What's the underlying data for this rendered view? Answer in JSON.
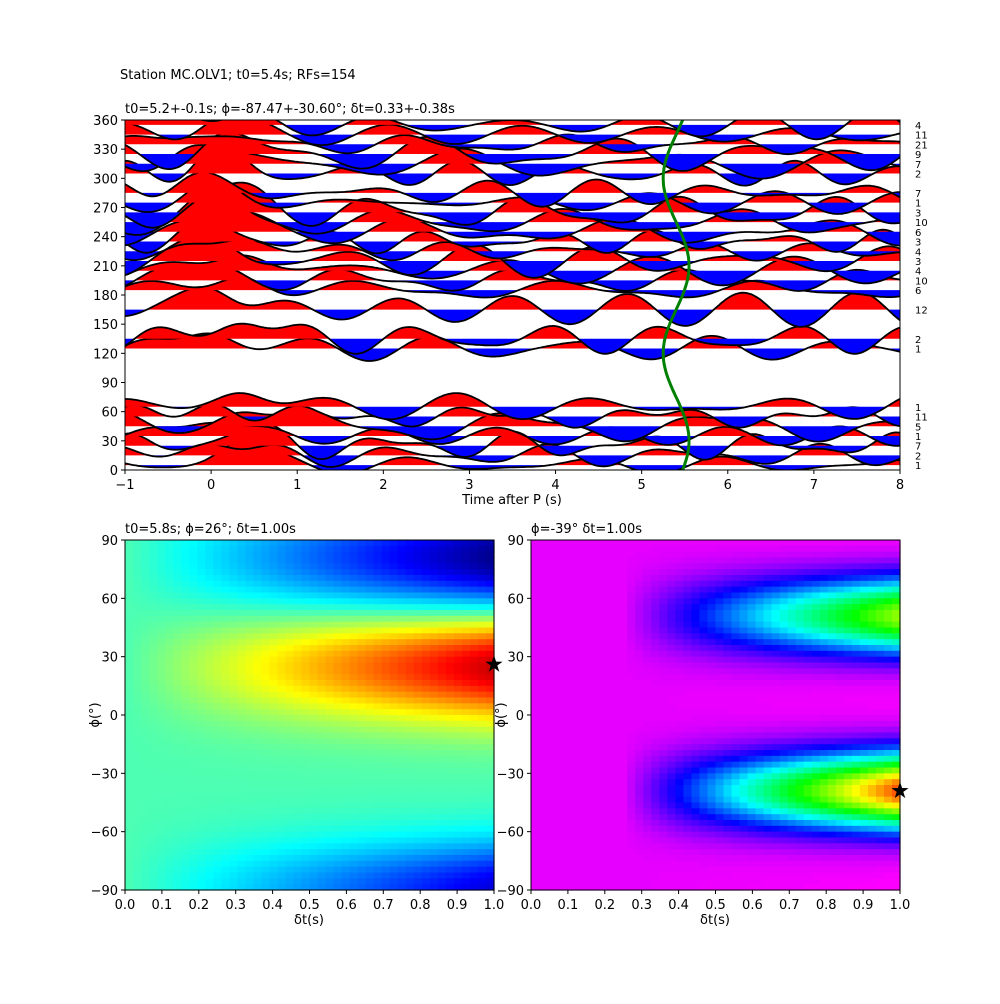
{
  "figure_title": "Station MC.OLV1; t0=5.4s; RFs=154",
  "chart_data": [
    {
      "type": "line",
      "title": "t0=5.2+-0.1s; ϕ=-87.47+-30.60°; δt=0.33+-0.38s",
      "xlabel": "Time after P (s)",
      "ylabel": "",
      "xlim": [
        -1,
        8
      ],
      "ylim": [
        0,
        360
      ],
      "x_ticks": [
        "−1",
        "0",
        "1",
        "2",
        "3",
        "4",
        "5",
        "6",
        "7",
        "8"
      ],
      "y_ticks": [
        "0",
        "30",
        "60",
        "90",
        "120",
        "150",
        "180",
        "210",
        "240",
        "270",
        "300",
        "330",
        "360"
      ],
      "fill_positive": "#ff0000",
      "fill_negative": "#0000ff",
      "trace_color": "#000000",
      "fit_curve_color": "#008000",
      "bins": [
        {
          "baz": 5,
          "count": "1"
        },
        {
          "baz": 15,
          "count": "2"
        },
        {
          "baz": 25,
          "count": "7"
        },
        {
          "baz": 35,
          "count": "1"
        },
        {
          "baz": 45,
          "count": "5"
        },
        {
          "baz": 55,
          "count": "11"
        },
        {
          "baz": 65,
          "count": "1"
        },
        {
          "baz": 125,
          "count": "1"
        },
        {
          "baz": 135,
          "count": "2"
        },
        {
          "baz": 165,
          "count": "12"
        },
        {
          "baz": 185,
          "count": "6"
        },
        {
          "baz": 195,
          "count": "10"
        },
        {
          "baz": 205,
          "count": "4"
        },
        {
          "baz": 215,
          "count": "3"
        },
        {
          "baz": 225,
          "count": "4"
        },
        {
          "baz": 235,
          "count": "3"
        },
        {
          "baz": 245,
          "count": "6"
        },
        {
          "baz": 255,
          "count": "10"
        },
        {
          "baz": 265,
          "count": "3"
        },
        {
          "baz": 275,
          "count": "1"
        },
        {
          "baz": 285,
          "count": "7"
        },
        {
          "baz": 305,
          "count": "2"
        },
        {
          "baz": 315,
          "count": "7"
        },
        {
          "baz": 325,
          "count": "9"
        },
        {
          "baz": 335,
          "count": "21"
        },
        {
          "baz": 345,
          "count": "11"
        },
        {
          "baz": 355,
          "count": "4"
        }
      ]
    },
    {
      "type": "heatmap",
      "title": "t0=5.8s; ϕ=26°; δt=1.00s",
      "xlabel": "δt(s)",
      "ylabel": "ϕ(°)",
      "xlim": [
        0,
        1
      ],
      "ylim": [
        -90,
        90
      ],
      "x_ticks": [
        "0.0",
        "0.1",
        "0.2",
        "0.3",
        "0.4",
        "0.5",
        "0.6",
        "0.7",
        "0.8",
        "0.9",
        "1.0"
      ],
      "y_ticks": [
        "−90",
        "−60",
        "−30",
        "0",
        "30",
        "60",
        "90"
      ],
      "colormap": "jet",
      "best_fit": {
        "dt": 1.0,
        "phi": 26
      }
    },
    {
      "type": "heatmap",
      "title": "ϕ=-39° δt=1.00s",
      "xlabel": "δt(s)",
      "ylabel": "ϕ(°)",
      "xlim": [
        0,
        1
      ],
      "ylim": [
        -90,
        90
      ],
      "x_ticks": [
        "0.0",
        "0.1",
        "0.2",
        "0.3",
        "0.4",
        "0.5",
        "0.6",
        "0.7",
        "0.8",
        "0.9",
        "1.0"
      ],
      "y_ticks": [
        "−90",
        "−60",
        "−30",
        "0",
        "30",
        "60",
        "90"
      ],
      "colormap": "gist_rainbow",
      "best_fit": {
        "dt": 1.0,
        "phi": -39
      }
    }
  ]
}
